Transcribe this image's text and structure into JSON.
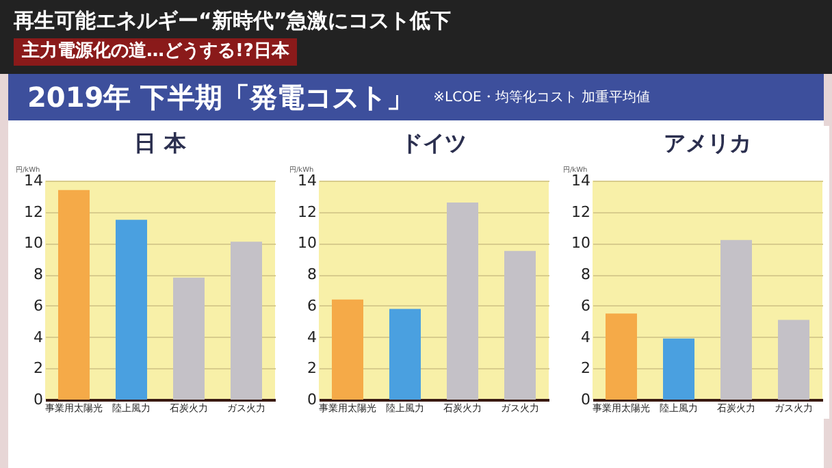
{
  "chart_data": [
    {
      "type": "bar",
      "title": "日 本",
      "annotations": [
        "再生可能エネルギー“新時代”急激にコスト低下",
        "主力電源化の道…どうする!?日本",
        "2019年 下半期「発電コスト」",
        "※LCOE・均等化コスト 加重平均値"
      ],
      "ylabel": "円/kWh",
      "categories": [
        "事業用太陽光",
        "陸上風力",
        "石炭火力",
        "ガス火力"
      ],
      "values": [
        13.4,
        11.5,
        7.8,
        10.1
      ],
      "colors": [
        "#f5aa48",
        "#4aa0e0",
        "#c4c1c7",
        "#c4c1c7"
      ],
      "ylim": [
        0,
        14
      ],
      "yticks": [
        0,
        2,
        4,
        6,
        8,
        10,
        12,
        14
      ],
      "grid": "y"
    },
    {
      "type": "bar",
      "title": "ドイツ",
      "ylabel": "円/kWh",
      "categories": [
        "事業用太陽光",
        "陸上風力",
        "石炭火力",
        "ガス火力"
      ],
      "values": [
        6.4,
        5.8,
        12.6,
        9.5
      ],
      "colors": [
        "#f5aa48",
        "#4aa0e0",
        "#c4c1c7",
        "#c4c1c7"
      ],
      "ylim": [
        0,
        14
      ],
      "yticks": [
        0,
        2,
        4,
        6,
        8,
        10,
        12,
        14
      ],
      "grid": "y"
    },
    {
      "type": "bar",
      "title": "アメリカ",
      "ylabel": "円/kWh",
      "categories": [
        "事業用太陽光",
        "陸上風力",
        "石炭火力",
        "ガス火力"
      ],
      "values": [
        5.5,
        3.9,
        10.2,
        5.1
      ],
      "colors": [
        "#f5aa48",
        "#4aa0e0",
        "#c4c1c7",
        "#c4c1c7"
      ],
      "ylim": [
        0,
        14
      ],
      "yticks": [
        0,
        2,
        4,
        6,
        8,
        10,
        12,
        14
      ],
      "grid": "y"
    }
  ]
}
